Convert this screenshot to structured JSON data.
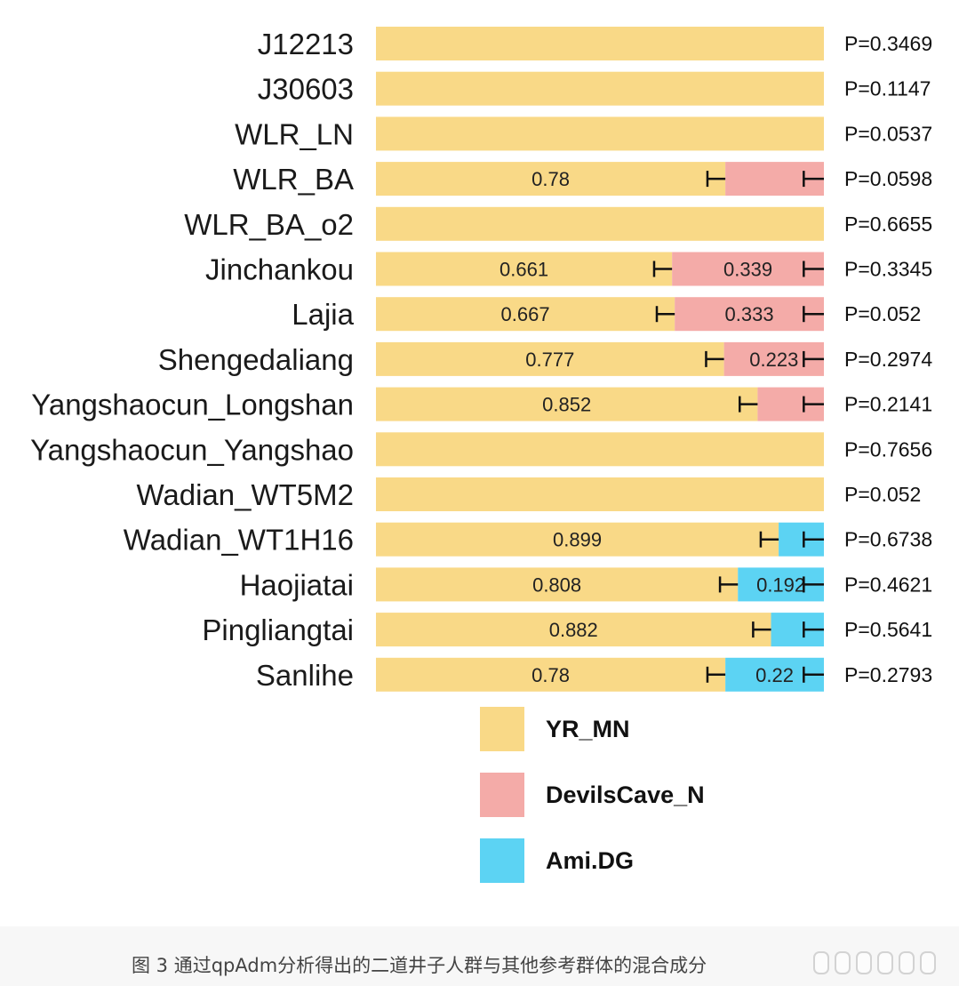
{
  "chart_data": {
    "type": "bar",
    "orientation": "horizontal",
    "stacked": true,
    "normalized": true,
    "xlim": [
      0,
      1
    ],
    "categories": [
      "J12213",
      "J30603",
      "WLR_LN",
      "WLR_BA",
      "WLR_BA_o2",
      "Jinchankou",
      "Lajia",
      "Shengedaliang",
      "Yangshaocun_Longshan",
      "Yangshaocun_Yangshao",
      "Wadian_WT5M2",
      "Wadian_WT1H16",
      "Haojiatai",
      "Pingliangtai",
      "Sanlihe"
    ],
    "series": [
      {
        "name": "YR_MN",
        "color": "#f9d987",
        "values": [
          1,
          1,
          1,
          0.78,
          1,
          0.661,
          0.667,
          0.777,
          0.852,
          1,
          1,
          0.899,
          0.808,
          0.882,
          0.78
        ],
        "labels": [
          "",
          "",
          "",
          "0.78",
          "",
          "0.661",
          "0.667",
          "0.777",
          "0.852",
          "",
          "",
          "0.899",
          "0.808",
          "0.882",
          "0.78"
        ],
        "errorbar": [
          false,
          false,
          false,
          true,
          false,
          true,
          true,
          true,
          true,
          false,
          false,
          true,
          true,
          true,
          true
        ]
      },
      {
        "name": "DevilsCave_N",
        "color": "#f4aba8",
        "values": [
          0,
          0,
          0,
          0.22,
          0,
          0.339,
          0.333,
          0.223,
          0.148,
          0,
          0,
          0,
          0,
          0,
          0
        ],
        "labels": [
          "",
          "",
          "",
          "",
          "",
          "0.339",
          "0.333",
          "0.223",
          "",
          "",
          "",
          "",
          "",
          "",
          ""
        ],
        "errorbar": [
          false,
          false,
          false,
          true,
          false,
          true,
          true,
          true,
          true,
          false,
          false,
          false,
          false,
          false,
          false
        ]
      },
      {
        "name": "Ami.DG",
        "color": "#5cd3f3",
        "values": [
          0,
          0,
          0,
          0,
          0,
          0,
          0,
          0,
          0,
          0,
          0,
          0.101,
          0.192,
          0.118,
          0.22
        ],
        "labels": [
          "",
          "",
          "",
          "",
          "",
          "",
          "",
          "",
          "",
          "",
          "",
          "",
          "0.192",
          "",
          "0.22"
        ],
        "errorbar": [
          false,
          false,
          false,
          false,
          false,
          false,
          false,
          false,
          false,
          false,
          false,
          true,
          true,
          true,
          true
        ]
      }
    ],
    "p_values": [
      "P=0.3469",
      "P=0.1147",
      "P=0.0537",
      "P=0.0598",
      "P=0.6655",
      "P=0.3345",
      "P=0.052",
      "P=0.2974",
      "P=0.2141",
      "P=0.7656",
      "P=0.052",
      "P=0.6738",
      "P=0.4621",
      "P=0.5641",
      "P=0.2793"
    ],
    "legend": {
      "position": "bottom-center",
      "entries": [
        {
          "label": "YR_MN",
          "color": "#f9d987"
        },
        {
          "label": "DevilsCave_N",
          "color": "#f4aba8"
        },
        {
          "label": "Ami.DG",
          "color": "#5cd3f3"
        }
      ]
    },
    "title": "",
    "xlabel": "",
    "ylabel": ""
  },
  "caption": "图 3 通过qpAdm分析得出的二道井子人群与其他参考群体的混合成分"
}
